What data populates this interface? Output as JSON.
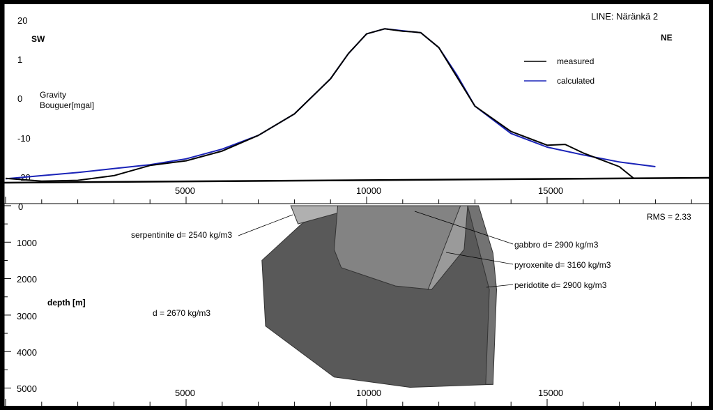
{
  "chart_data": [
    {
      "type": "line",
      "title": "LINE: Näränkä 2",
      "ylabel_line1": "Gravity",
      "ylabel_line2": "Bouguer[mgal]",
      "left_direction": "SW",
      "right_direction": "NE",
      "y_tick_labels": [
        "20",
        "1",
        "0",
        "-10",
        "-20"
      ],
      "x_tick_labels": [
        "5000",
        "10000",
        "15000"
      ],
      "xlim": [
        0,
        18000
      ],
      "legend_position": "top-right",
      "series": [
        {
          "name": "measured",
          "color": "#000000",
          "x": [
            0,
            1000,
            2000,
            3000,
            4000,
            5000,
            6000,
            7000,
            8000,
            9000,
            9500,
            10000,
            10500,
            11000,
            11300,
            11500,
            12000,
            12500,
            13000,
            14000,
            15000,
            15500,
            16000,
            17000,
            17400
          ],
          "y": [
            -20.5,
            -21.2,
            -21,
            -19.8,
            -17.2,
            -16,
            -13.5,
            -9.5,
            -4,
            5,
            11.5,
            16.5,
            17.8,
            17.2,
            17,
            16.8,
            13,
            5.5,
            -2,
            -8.5,
            -12,
            -11.8,
            -14,
            -17.5,
            -20.5
          ]
        },
        {
          "name": "calculated",
          "color": "#1a23b8",
          "x": [
            0,
            1000,
            2000,
            3000,
            4000,
            5000,
            6000,
            7000,
            8000,
            9000,
            9500,
            10000,
            10500,
            11000,
            11500,
            12000,
            12500,
            13000,
            14000,
            15000,
            16000,
            17000,
            18000
          ],
          "y": [
            -20.6,
            -19.8,
            -19,
            -18,
            -17,
            -15.5,
            -13,
            -9.5,
            -4,
            5,
            11.5,
            16.5,
            17.8,
            17.3,
            16.8,
            13,
            6,
            -2,
            -9,
            -12.5,
            -14.5,
            -16.3,
            -17.5
          ]
        }
      ]
    },
    {
      "type": "area",
      "ylabel": "depth [m]",
      "y_tick_labels": [
        "0",
        "1000",
        "2000",
        "3000",
        "4000",
        "5000"
      ],
      "x_tick_labels": [
        "5000",
        "10000",
        "15000"
      ],
      "xlim": [
        0,
        18000
      ],
      "ylim": [
        5000,
        0
      ],
      "rms_label": "RMS = 2.33",
      "background_density_label": "d = 2670 kg/m3",
      "bodies": [
        {
          "label": "serpentinite d= 2540 kg/m3",
          "color": "#b0b0b0",
          "x": [
            7900,
            9200,
            9200,
            8100
          ],
          "depth": [
            0,
            0,
            200,
            500
          ]
        },
        {
          "label": "",
          "color": "#595959",
          "x": [
            8200,
            9200,
            12900,
            13500,
            13500,
            11200,
            9100,
            7200,
            7100
          ],
          "depth": [
            500,
            0,
            0,
            1800,
            4900,
            4980,
            4700,
            3300,
            1500
          ]
        },
        {
          "label": "gabbro d= 2900 kg/m3",
          "color": "#838383",
          "x": [
            9200,
            12700,
            12500,
            11800,
            10800,
            9300,
            9100
          ],
          "depth": [
            0,
            0,
            1000,
            2300,
            2200,
            1700,
            1200
          ]
        },
        {
          "label": "pyroxenite d= 3160 kg/m3",
          "color": "#9a9a9a",
          "x": [
            12600,
            12800,
            12700,
            11800,
            11700
          ],
          "depth": [
            0,
            0,
            1200,
            2300,
            2300
          ]
        },
        {
          "label": "peridotite d= 2900 kg/m3",
          "color": "#737373",
          "x": [
            12800,
            13100,
            13500,
            13600,
            13500,
            13300,
            13400
          ],
          "depth": [
            0,
            0,
            1300,
            2300,
            4900,
            4900,
            2300
          ]
        }
      ]
    }
  ]
}
